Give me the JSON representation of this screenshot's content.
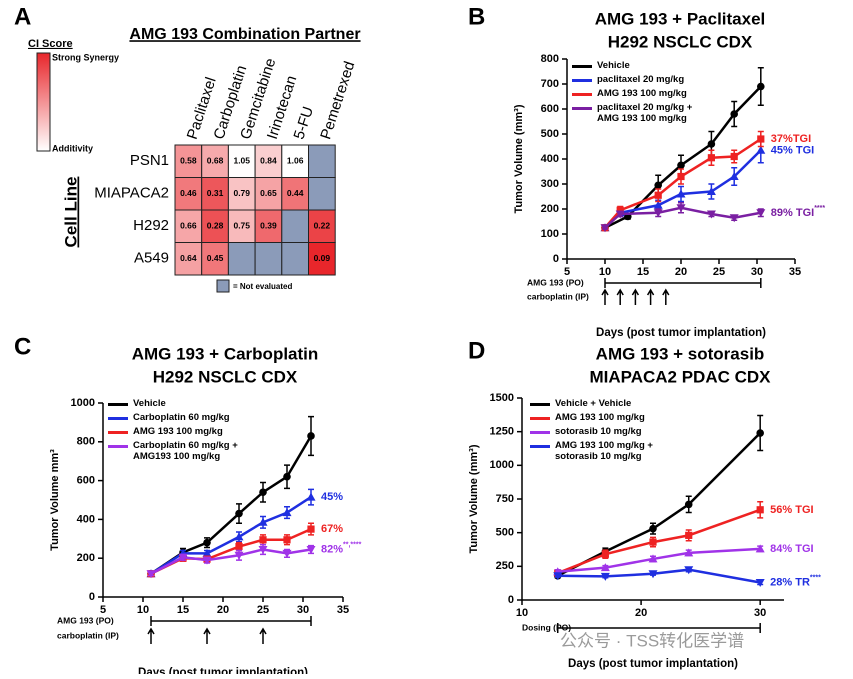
{
  "chart_data": [
    {
      "panel": "A",
      "type": "heatmap",
      "title": "AMG 193 Combination Partner",
      "columns": [
        "Paclitaxel",
        "Carboplatin",
        "Gemcitabine",
        "Irinotecan",
        "5-FU",
        "Pemetrexed"
      ],
      "rows": [
        "PSN1",
        "MIAPACA2",
        "H292",
        "A549"
      ],
      "values": [
        [
          0.58,
          0.68,
          1.05,
          0.84,
          1.06,
          null
        ],
        [
          0.46,
          0.31,
          0.79,
          0.65,
          0.44,
          null
        ],
        [
          0.66,
          0.28,
          0.75,
          0.39,
          null,
          0.22
        ],
        [
          0.64,
          0.45,
          null,
          null,
          null,
          0.09
        ]
      ],
      "y_label": "Cell Line",
      "colorbar": {
        "title": "CI Score",
        "high_label": "Strong Synergy",
        "low_label": "Additivity",
        "high_color": "#e8262b",
        "low_color": "#ffffff"
      },
      "missing": {
        "label": "= Not evaluated",
        "color": "#8b9bb9"
      }
    },
    {
      "panel": "B",
      "type": "line",
      "title": "AMG 193 + Paclitaxel",
      "subtitle": "H292 NSCLC CDX",
      "x_label": "Days (post tumor implantation)",
      "y_label": "Tumor Volume (mm³)",
      "xlim": [
        5,
        35
      ],
      "xticks": [
        5,
        10,
        15,
        20,
        25,
        30,
        35
      ],
      "ylim": [
        0,
        800
      ],
      "yticks": [
        0,
        100,
        200,
        300,
        400,
        500,
        600,
        700,
        800
      ],
      "series": [
        {
          "name": "Vehicle",
          "color": "#000000",
          "marker": "circle",
          "x": [
            10,
            13,
            17,
            20,
            24,
            27,
            30.5
          ],
          "values": [
            125,
            170,
            295,
            375,
            460,
            580,
            690
          ],
          "errors": [
            5,
            10,
            40,
            40,
            50,
            50,
            75
          ]
        },
        {
          "name": "paclitaxel 20 mg/kg",
          "color": "#1f2fe0",
          "marker": "triangle",
          "x": [
            10,
            12,
            17,
            20,
            24,
            27,
            30.5
          ],
          "values": [
            125,
            185,
            215,
            260,
            270,
            330,
            435
          ],
          "errors": [
            5,
            15,
            20,
            30,
            30,
            35,
            50
          ],
          "annotation": "45% TGI"
        },
        {
          "name": "AMG 193 100 mg/kg",
          "color": "#ee2222",
          "marker": "square",
          "x": [
            10,
            12,
            17,
            20,
            24,
            27,
            30.5
          ],
          "values": [
            125,
            195,
            255,
            330,
            405,
            410,
            480
          ],
          "errors": [
            5,
            15,
            25,
            30,
            30,
            25,
            30
          ],
          "annotation": "37%TGI"
        },
        {
          "name": "paclitaxel 20 mg/kg +\nAMG 193 100 mg/kg",
          "color": "#7a1fa2",
          "marker": "triangle-down",
          "x": [
            10,
            12,
            17,
            20,
            24,
            27,
            30.5
          ],
          "values": [
            125,
            180,
            185,
            205,
            180,
            165,
            185
          ],
          "errors": [
            5,
            10,
            15,
            20,
            10,
            10,
            15
          ],
          "annotation": "89% TGI",
          "annotation_sup": "****"
        }
      ],
      "dosing": [
        {
          "label": "AMG 193 (PO)",
          "start": 10,
          "end": 30.5
        },
        {
          "label": "carboplatin (IP)",
          "days": [
            10,
            12,
            14,
            16,
            18
          ]
        }
      ]
    },
    {
      "panel": "C",
      "type": "line",
      "title": "AMG 193 + Carboplatin",
      "subtitle": "H292 NSCLC CDX",
      "x_label": "Days (post tumor implantation)",
      "y_label": "Tumor Volume mm³",
      "xlim": [
        5,
        35
      ],
      "xticks": [
        5,
        10,
        15,
        20,
        25,
        30,
        35
      ],
      "ylim": [
        0,
        1000
      ],
      "yticks": [
        0,
        200,
        400,
        600,
        800,
        1000
      ],
      "series": [
        {
          "name": "Vehicle",
          "color": "#000000",
          "marker": "circle",
          "x": [
            11,
            15,
            18,
            22,
            25,
            28,
            31
          ],
          "values": [
            120,
            230,
            280,
            430,
            540,
            620,
            830
          ],
          "errors": [
            10,
            20,
            25,
            50,
            50,
            60,
            100
          ]
        },
        {
          "name": "Carboplatin  60 mg/kg",
          "color": "#1f2fe0",
          "marker": "triangle",
          "x": [
            11,
            15,
            18,
            22,
            25,
            28,
            31
          ],
          "values": [
            120,
            225,
            225,
            310,
            385,
            435,
            515
          ],
          "errors": [
            10,
            15,
            15,
            25,
            30,
            30,
            40
          ],
          "annotation": "45%"
        },
        {
          "name": "AMG 193 100 mg/kg",
          "color": "#ee2222",
          "marker": "square",
          "x": [
            11,
            15,
            18,
            22,
            25,
            28,
            31
          ],
          "values": [
            120,
            200,
            195,
            260,
            295,
            295,
            350
          ],
          "errors": [
            10,
            15,
            15,
            20,
            25,
            25,
            30
          ],
          "annotation": "67%"
        },
        {
          "name": "Carboplatin 60 mg/kg +\nAMG193 100 mg/kg",
          "color": "#a033e8",
          "marker": "triangle-down",
          "x": [
            11,
            15,
            18,
            22,
            25,
            28,
            31
          ],
          "values": [
            120,
            205,
            190,
            215,
            245,
            225,
            245
          ],
          "errors": [
            10,
            15,
            15,
            25,
            25,
            20,
            20
          ],
          "annotation": "82%",
          "annotation_sup": "**,****"
        }
      ],
      "dosing": [
        {
          "label": "AMG 193 (PO)",
          "start": 11,
          "end": 31
        },
        {
          "label": "carboplatin (IP)",
          "days": [
            11,
            18,
            25
          ]
        }
      ]
    },
    {
      "panel": "D",
      "type": "line",
      "title": "AMG 193 + sotorasib",
      "subtitle": "MIAPACA2 PDAC CDX",
      "x_label": "Days (post tumor implantation)",
      "y_label": "Tumor Volume (mm³)",
      "xlim": [
        10,
        32
      ],
      "xticks": [
        10,
        20,
        30
      ],
      "ylim": [
        0,
        1500
      ],
      "yticks": [
        0,
        250,
        500,
        750,
        1000,
        1250,
        1500
      ],
      "series": [
        {
          "name": "Vehicle + Vehicle",
          "color": "#000000",
          "marker": "circle",
          "x": [
            13,
            17,
            21,
            24,
            30
          ],
          "values": [
            180,
            360,
            530,
            710,
            1240
          ],
          "errors": [
            15,
            25,
            40,
            60,
            130
          ]
        },
        {
          "name": "AMG 193 100 mg/kg",
          "color": "#ee2222",
          "marker": "square",
          "x": [
            13,
            17,
            21,
            24,
            30
          ],
          "values": [
            200,
            340,
            430,
            480,
            670
          ],
          "errors": [
            15,
            30,
            35,
            40,
            60
          ],
          "annotation": "56% TGI"
        },
        {
          "name": "sotorasib 10 mg/kg",
          "color": "#a033e8",
          "marker": "triangle",
          "x": [
            13,
            17,
            21,
            24,
            30
          ],
          "values": [
            210,
            240,
            305,
            350,
            380
          ],
          "errors": [
            15,
            15,
            20,
            20,
            20
          ],
          "annotation": "84% TGI"
        },
        {
          "name": "AMG 193 100 mg/kg  +\nsotorasib 10 mg/kg",
          "color": "#1f2fe0",
          "marker": "triangle-down",
          "x": [
            13,
            17,
            21,
            24,
            30
          ],
          "values": [
            180,
            175,
            195,
            225,
            130
          ],
          "errors": [
            10,
            10,
            10,
            15,
            15
          ],
          "annotation": "28% TR",
          "annotation_sup": "****"
        }
      ],
      "dosing": [
        {
          "label": "Dosing (PO)",
          "start": 13,
          "end": 30
        }
      ]
    }
  ],
  "watermark": "公众号 · TSS转化医学谱"
}
